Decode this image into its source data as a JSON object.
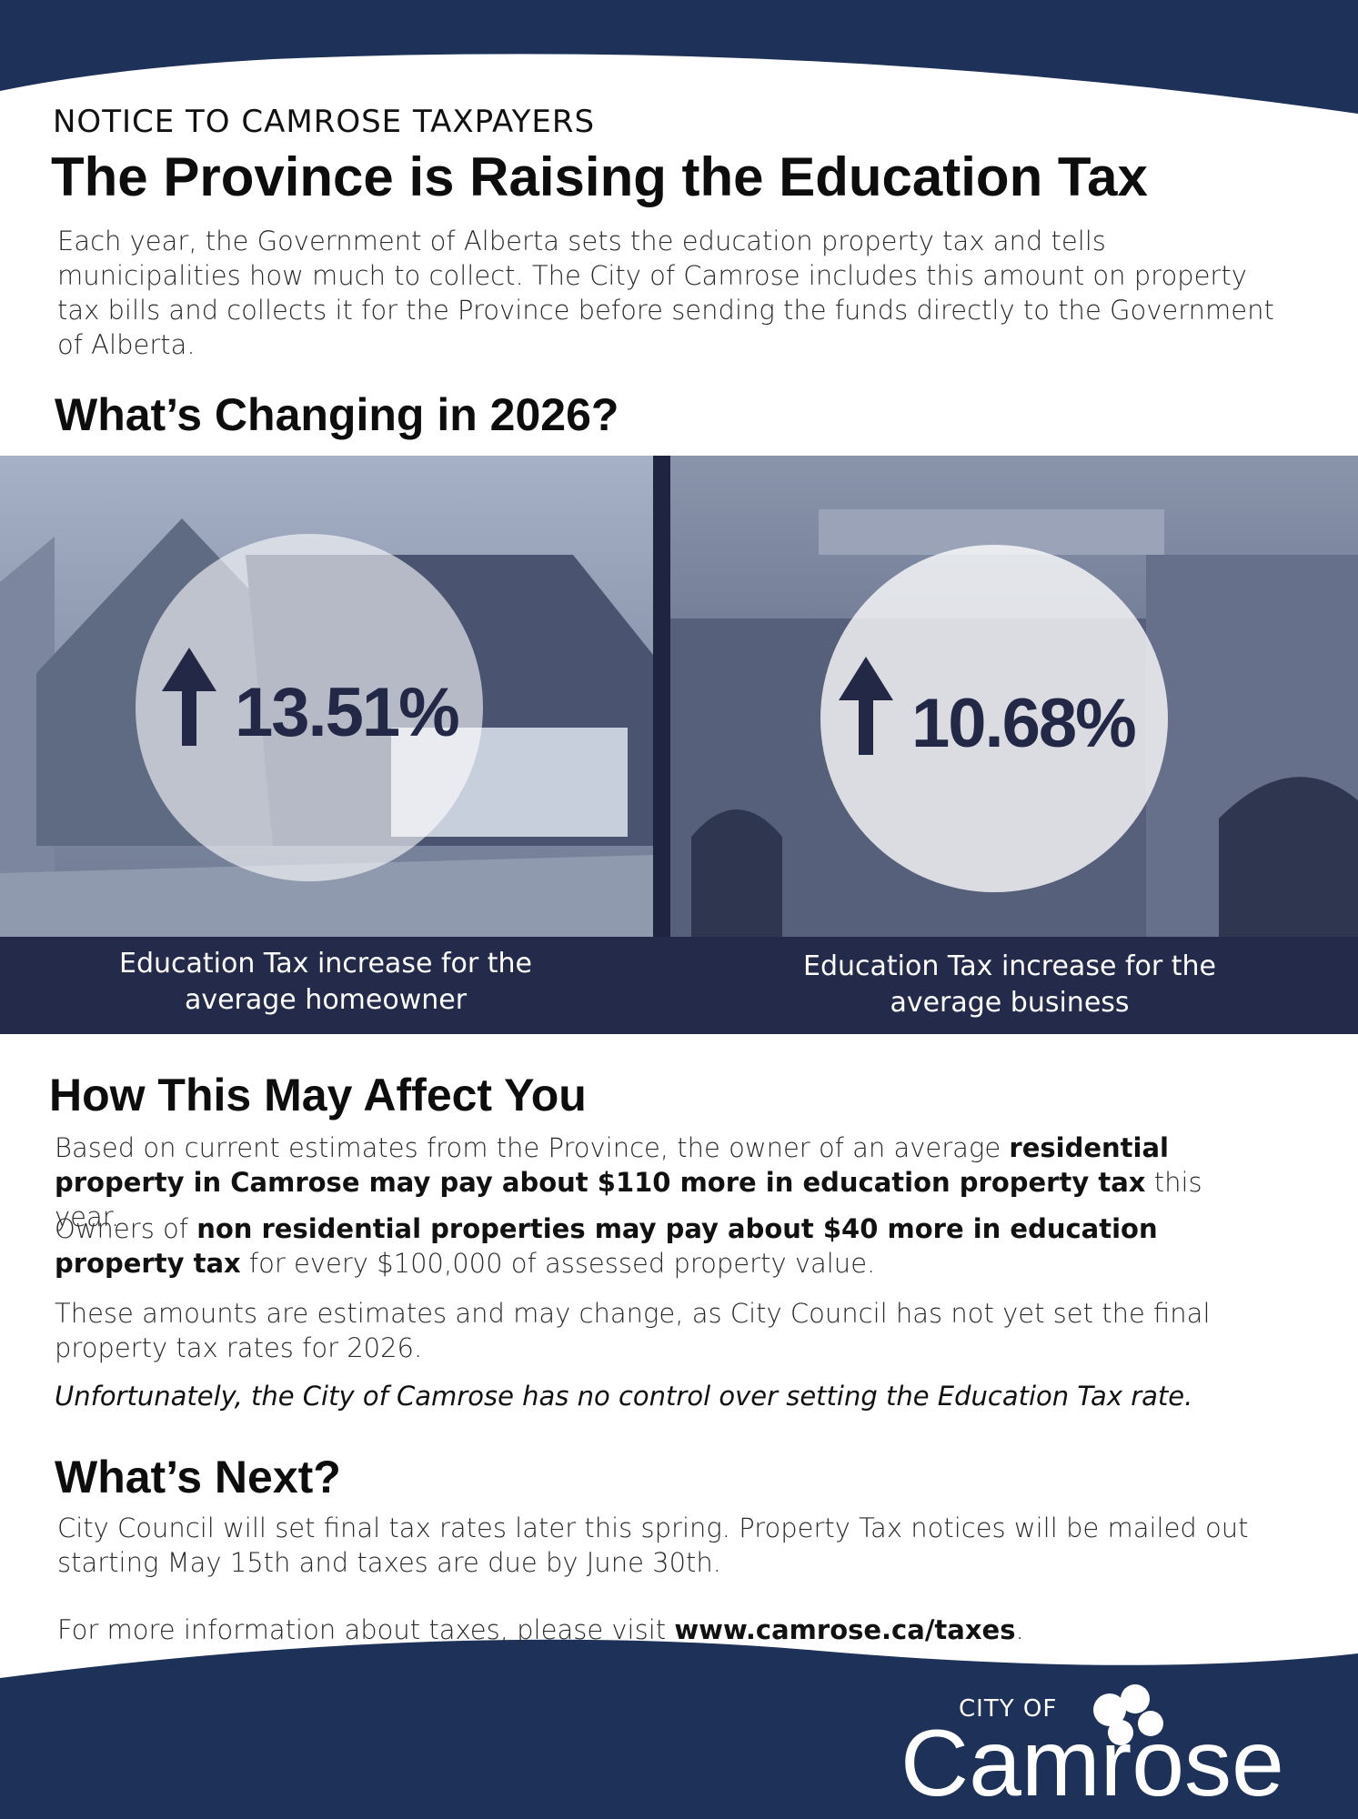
{
  "header": {
    "notice": "NOTICE TO CAMROSE TAXPAYERS",
    "title": "The Province is Raising the Education Tax"
  },
  "intro": "Each year, the Government of Alberta sets the education property tax and tells municipalities how much to collect. The City of Camrose includes this amount on property tax bills and collects it for the Province before sending the funds directly to the Government of Alberta.",
  "changing": {
    "heading": "What’s Changing in 2026?",
    "panels": [
      {
        "increase": "13.51%",
        "caption": "Education Tax increase for the average homeowner"
      },
      {
        "increase": "10.68%",
        "caption": "Education Tax increase for the average business"
      }
    ]
  },
  "affect": {
    "heading": "How This May Affect You",
    "paragraphs": [
      {
        "before": "Based on current estimates from the Province, the owner of an average ",
        "strong": "residential property in Camrose may pay about $110 more in education property tax",
        "after": " this year."
      },
      {
        "before": "Owners of ",
        "strong": "non residential properties may pay about $40 more in education property tax",
        "after": " for every $100,000 of assessed property value."
      },
      {
        "text": "These amounts are estimates and may change, as City Council has not yet set the final property tax rates for 2026."
      }
    ],
    "note": "Unfortunately, the City of Camrose has no control over setting the Education Tax rate."
  },
  "next": {
    "heading": "What’s Next?",
    "paragraph": "City Council will set final tax rates later this spring. Property Tax notices will be mailed out starting May 15th and taxes are due by June 30th.",
    "more": {
      "before": "For more information about taxes, please visit ",
      "strong": "www.camrose.ca/taxes",
      "after": "."
    }
  },
  "footer": {
    "logo_small": "CITY OF",
    "logo_big": "Camrose"
  }
}
